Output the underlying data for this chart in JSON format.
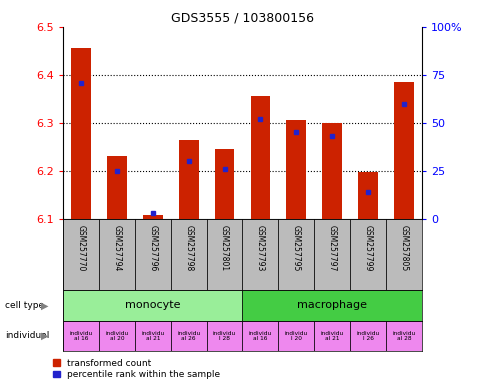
{
  "title": "GDS3555 / 103800156",
  "samples": [
    "GSM257770",
    "GSM257794",
    "GSM257796",
    "GSM257798",
    "GSM257801",
    "GSM257793",
    "GSM257795",
    "GSM257797",
    "GSM257799",
    "GSM257805"
  ],
  "transformed_counts": [
    6.455,
    6.23,
    6.108,
    6.265,
    6.245,
    6.355,
    6.305,
    6.3,
    6.198,
    6.385
  ],
  "percentile_ranks": [
    71,
    25,
    3,
    30,
    26,
    52,
    45,
    43,
    14,
    60
  ],
  "ylim": [
    6.1,
    6.5
  ],
  "yticks": [
    6.1,
    6.2,
    6.3,
    6.4,
    6.5
  ],
  "right_yticks": [
    0,
    25,
    50,
    75,
    100
  ],
  "right_ylabels": [
    "0",
    "25",
    "50",
    "75",
    "100%"
  ],
  "bar_color": "#cc2200",
  "blue_color": "#2222cc",
  "monocyte_color": "#99ee99",
  "macrophage_color": "#44cc44",
  "individual_color": "#ee88ee",
  "sample_bg_color": "#bbbbbb",
  "bar_width": 0.55,
  "ybase": 6.1,
  "legend_red": "transformed count",
  "legend_blue": "percentile rank within the sample"
}
